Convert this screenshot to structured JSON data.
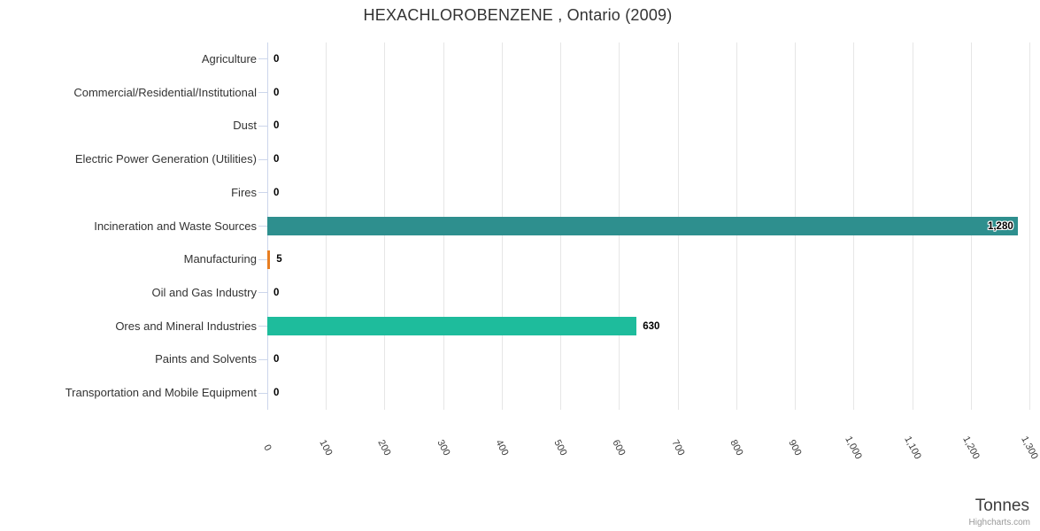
{
  "chart_data": {
    "type": "bar",
    "title": "HEXACHLOROBENZENE , Ontario (2009)",
    "categories": [
      "Agriculture",
      "Commercial/Residential/Institutional",
      "Dust",
      "Electric Power Generation (Utilities)",
      "Fires",
      "Incineration and Waste Sources",
      "Manufacturing",
      "Oil and Gas Industry",
      "Ores and Mineral Industries",
      "Paints and Solvents",
      "Transportation and Mobile Equipment"
    ],
    "values": [
      0,
      0,
      0,
      0,
      0,
      1280,
      5,
      0,
      630,
      0,
      0
    ],
    "value_labels": [
      "0",
      "0",
      "0",
      "0",
      "0",
      "1,280",
      "5",
      "0",
      "630",
      "0",
      "0"
    ],
    "bar_colors": [
      null,
      null,
      null,
      null,
      null,
      "#2E8F8E",
      "#E87E21",
      null,
      "#1EBC9C",
      null,
      null
    ],
    "xlabel": "Tonnes",
    "ylabel": "",
    "xlim": [
      0,
      1300
    ],
    "x_tick_values": [
      0,
      100,
      200,
      300,
      400,
      500,
      600,
      700,
      800,
      900,
      1000,
      1100,
      1200,
      1300
    ],
    "x_tick_labels": [
      "0",
      "100",
      "200",
      "300",
      "400",
      "500",
      "600",
      "700",
      "800",
      "900",
      "1,000",
      "1,100",
      "1,200",
      "1,300"
    ],
    "grid": true,
    "legend": false,
    "credit": "Highcharts.com",
    "colors": {
      "grid_line": "#E6E6E6",
      "axis_line": "#CCD6EB",
      "title_text": "#333333",
      "category_text": "#333333",
      "data_label_text": "#000000",
      "credit_text": "#999999"
    }
  }
}
